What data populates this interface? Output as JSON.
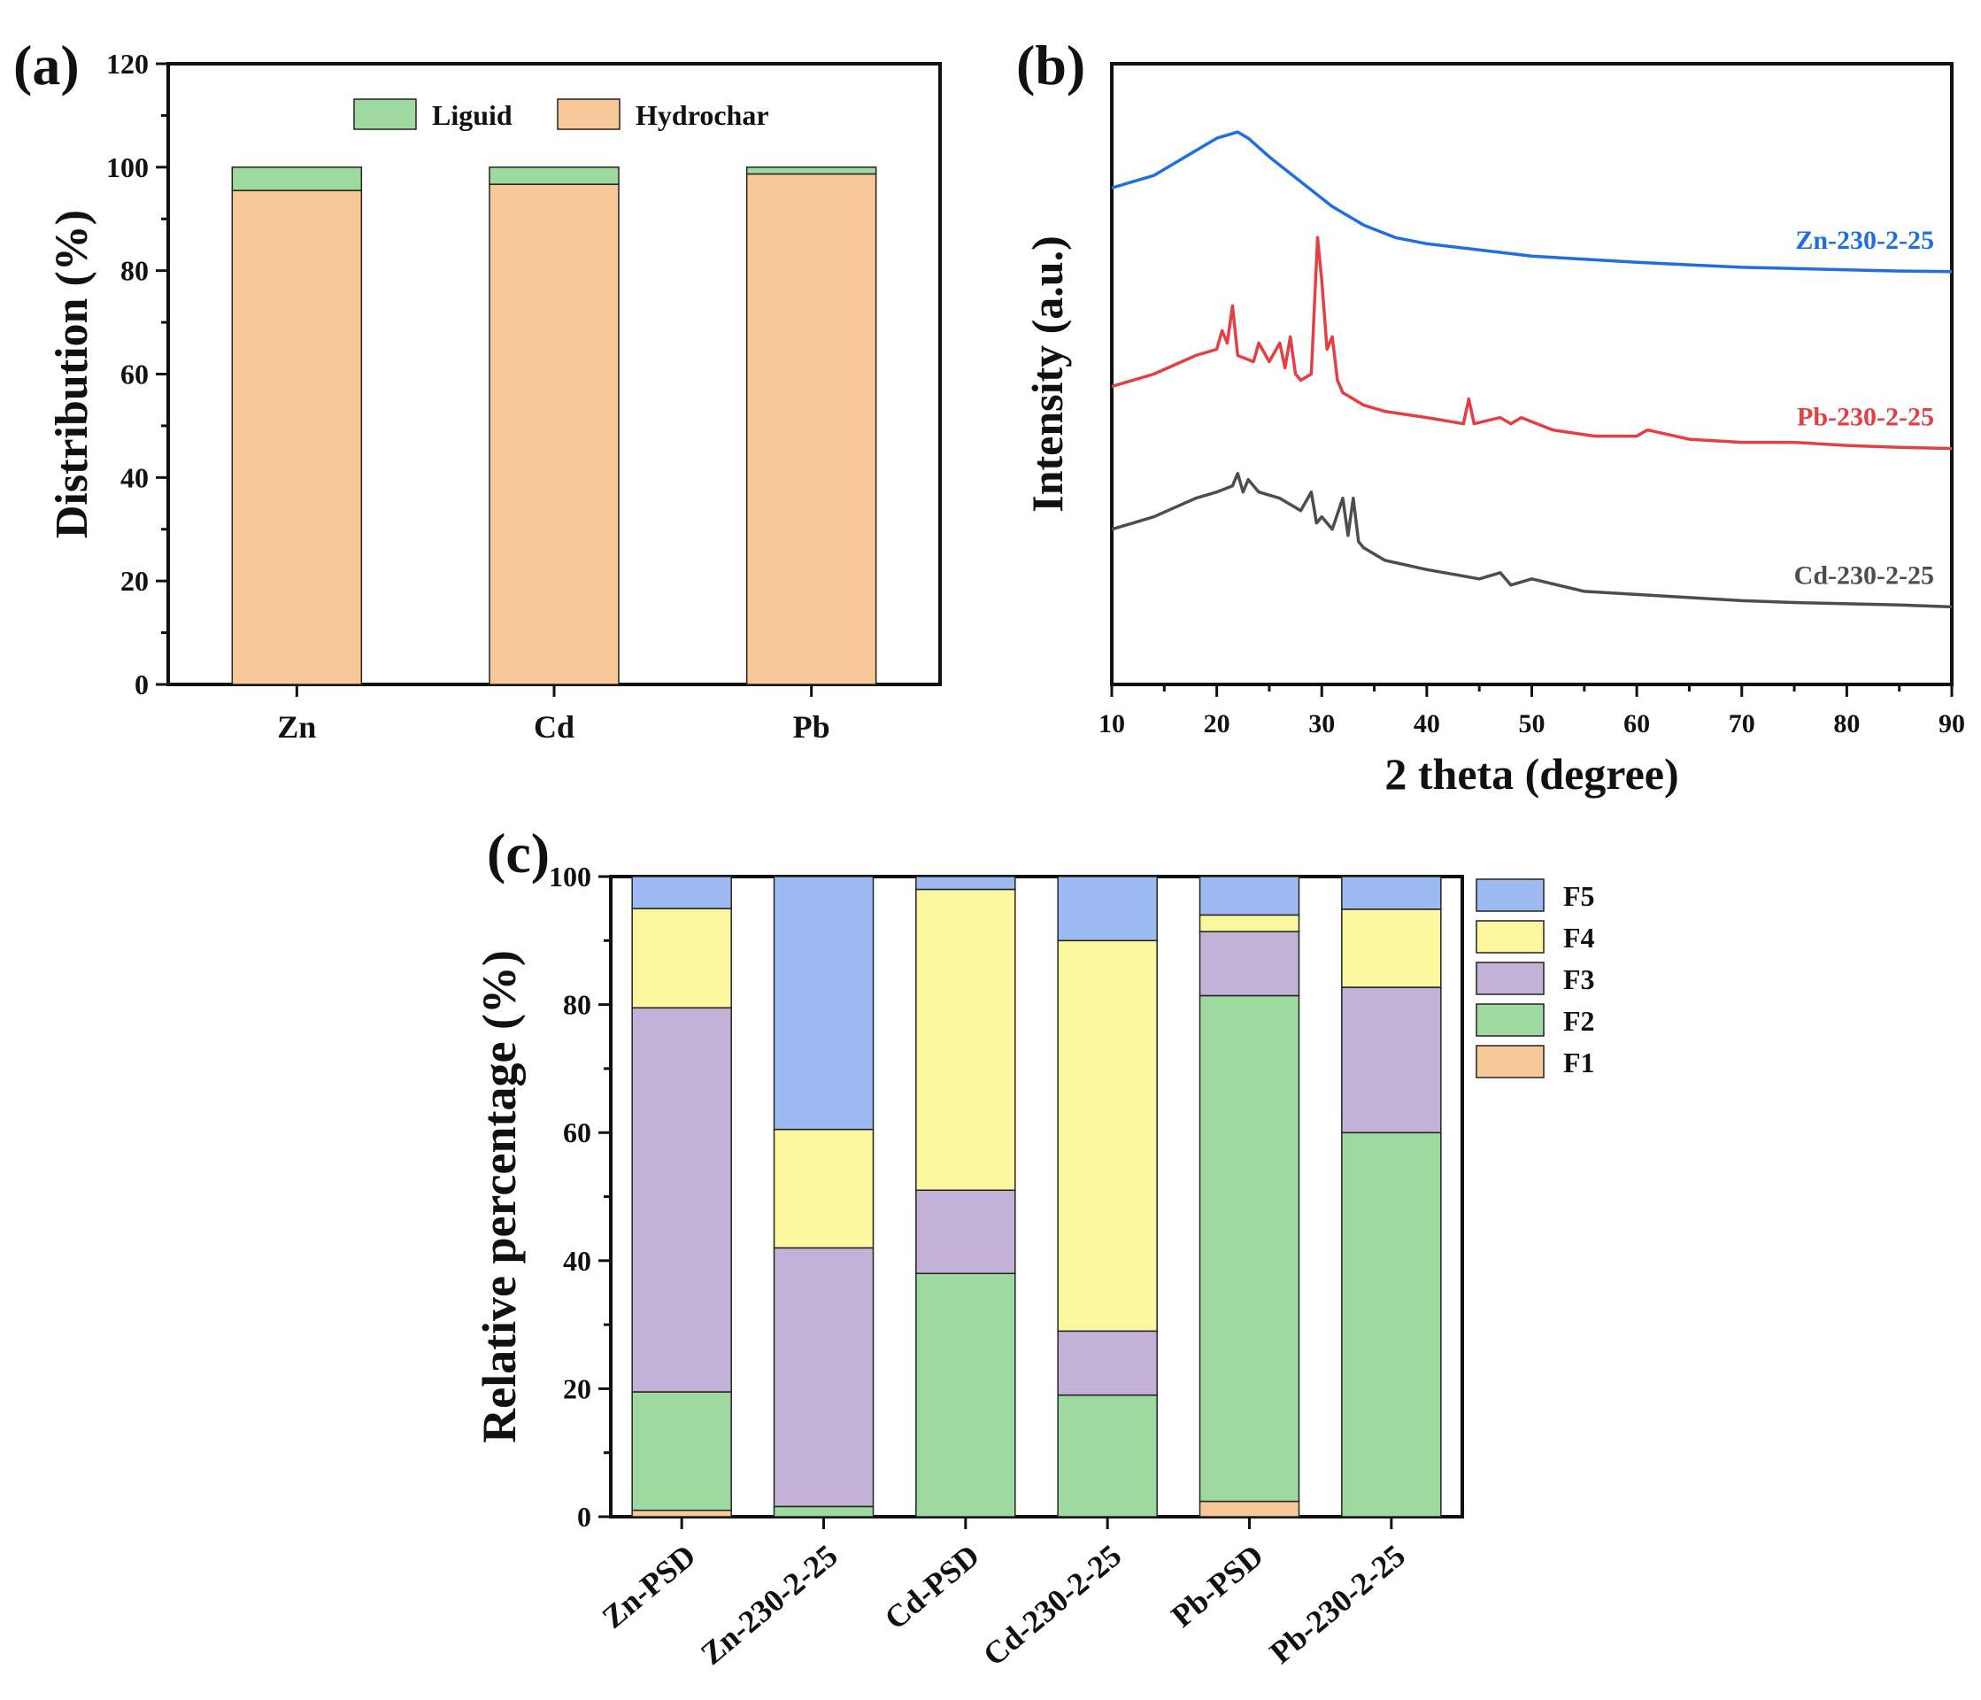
{
  "panels": {
    "a": {
      "label": "(a)"
    },
    "b": {
      "label": "(b)"
    },
    "c": {
      "label": "(c)"
    }
  },
  "colors": {
    "liquid": "#9ed9a0",
    "hydrochar": "#f9c898",
    "F1": "#f9c898",
    "F2": "#9ed9a0",
    "F3": "#c3b1d7",
    "F4": "#fbf79f",
    "F5": "#9dbbf2",
    "Zn-230-2-25": "#1f6fe0",
    "Pb-230-2-25": "#e53f43",
    "Cd-230-2-25": "#4d4d4d"
  },
  "chart_data": [
    {
      "id": "a",
      "type": "bar",
      "stacked": true,
      "title": "",
      "xlabel": "",
      "ylabel": "Distribution (%)",
      "ylim": [
        0,
        120
      ],
      "yticks": [
        "0",
        "20",
        "40",
        "60",
        "80",
        "100",
        "120"
      ],
      "categories": [
        "Zn",
        "Cd",
        "Pb"
      ],
      "series": [
        {
          "name": "Hydrochar",
          "color_key": "hydrochar",
          "values": [
            95.5,
            96.7,
            98.7
          ]
        },
        {
          "name": "Liguid",
          "color_key": "liquid",
          "values": [
            4.5,
            3.3,
            1.3
          ]
        }
      ],
      "legend": [
        {
          "name": "Liguid",
          "color_key": "liquid"
        },
        {
          "name": "Hydrochar",
          "color_key": "hydrochar"
        }
      ],
      "legend_position": "top"
    },
    {
      "id": "b",
      "type": "line",
      "title": "",
      "xlabel": "2 theta (degree)",
      "ylabel": "Intensity (a.u.)",
      "xlim": [
        10,
        90
      ],
      "xticks": [
        "10",
        "20",
        "30",
        "40",
        "50",
        "60",
        "70",
        "80",
        "90"
      ],
      "yticks_visible": false,
      "series": [
        {
          "name": "Zn-230-2-25",
          "color_key": "Zn-230-2-25",
          "x": [
            10,
            14,
            18,
            20,
            22,
            23,
            25,
            28,
            31,
            34,
            37,
            40,
            45,
            50,
            55,
            60,
            65,
            70,
            75,
            80,
            85,
            90
          ],
          "y": [
            80,
            82,
            86,
            88,
            89,
            88,
            85,
            81,
            77,
            74,
            72,
            71,
            70,
            69,
            68.5,
            68,
            67.6,
            67.2,
            67,
            66.8,
            66.6,
            66.5
          ]
        },
        {
          "name": "Pb-230-2-25",
          "color_key": "Pb-230-2-25",
          "x": [
            10,
            14,
            18,
            20,
            20.5,
            21,
            21.5,
            22,
            23.5,
            24,
            25,
            26,
            26.5,
            27,
            27.5,
            28,
            29,
            29.6,
            30,
            30.5,
            31,
            31.5,
            32,
            34,
            36,
            40,
            43.5,
            44,
            44.5,
            47,
            48,
            49,
            52,
            56,
            60,
            61,
            65,
            70,
            75,
            80,
            85,
            90
          ],
          "y": [
            48,
            50,
            53,
            54,
            57,
            55,
            61,
            53,
            52,
            55,
            52,
            55,
            51,
            56,
            50,
            49,
            50,
            72,
            65,
            54,
            56,
            49,
            47,
            45,
            44,
            43,
            42,
            46,
            42,
            43,
            42,
            43,
            41,
            40,
            40,
            41,
            39.5,
            39,
            39,
            38.5,
            38.2,
            38
          ]
        },
        {
          "name": "Cd-230-2-25",
          "color_key": "Cd-230-2-25",
          "x": [
            10,
            14,
            18,
            20,
            21.5,
            22,
            22.5,
            23,
            24,
            26,
            28,
            29,
            29.5,
            30,
            31,
            32,
            32.5,
            33,
            33.5,
            34,
            36,
            40,
            45,
            47,
            48,
            50,
            55,
            60,
            65,
            70,
            75,
            80,
            85,
            90
          ],
          "y": [
            25,
            27,
            30,
            31,
            32,
            34,
            31,
            33,
            31,
            30,
            28,
            31,
            26,
            27,
            25,
            30,
            24,
            30,
            23,
            22,
            20,
            18.5,
            17,
            18,
            16,
            17,
            15,
            14.5,
            14,
            13.5,
            13.2,
            13,
            12.8,
            12.5
          ]
        }
      ],
      "line_labels": [
        "Zn-230-2-25",
        "Pb-230-2-25",
        "Cd-230-2-25"
      ]
    },
    {
      "id": "c",
      "type": "bar",
      "stacked": true,
      "title": "",
      "xlabel": "",
      "ylabel": "Relative percentage (%)",
      "ylim": [
        0,
        100
      ],
      "yticks": [
        "0",
        "20",
        "40",
        "60",
        "80",
        "100"
      ],
      "categories": [
        "Zn-PSD",
        "Zn-230-2-25",
        "Cd-PSD",
        "Cd-230-2-25",
        "Pb-PSD",
        "Pb-230-2-25"
      ],
      "series": [
        {
          "name": "F1",
          "color_key": "F1",
          "values": [
            1,
            0,
            0,
            0,
            2.4,
            0
          ]
        },
        {
          "name": "F2",
          "color_key": "F2",
          "values": [
            18.5,
            1.6,
            38,
            19,
            79,
            60
          ]
        },
        {
          "name": "F3",
          "color_key": "F3",
          "values": [
            60,
            40.4,
            13,
            10,
            10,
            22.7
          ]
        },
        {
          "name": "F4",
          "color_key": "F4",
          "values": [
            15.5,
            18.5,
            47,
            61,
            2.6,
            12.2
          ]
        },
        {
          "name": "F5",
          "color_key": "F5",
          "values": [
            5,
            39.5,
            2,
            10,
            6,
            5.1
          ]
        }
      ],
      "legend": [
        "F5",
        "F4",
        "F3",
        "F2",
        "F1"
      ],
      "legend_position": "right"
    }
  ]
}
